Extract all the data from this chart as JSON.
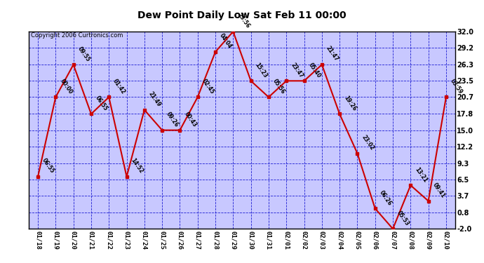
{
  "title": "Dew Point Daily Low Sat Feb 11 00:00",
  "copyright": "Copyright 2006 Curtronics.com",
  "outer_bg": "#ffffff",
  "plot_bg_color": "#c8c8ff",
  "line_color": "#cc0000",
  "marker_color": "#cc0000",
  "grid_color": "#0000cc",
  "x_labels": [
    "01/18",
    "01/19",
    "01/20",
    "01/21",
    "01/22",
    "01/23",
    "01/24",
    "01/25",
    "01/26",
    "01/27",
    "01/28",
    "01/29",
    "01/30",
    "01/31",
    "02/01",
    "02/02",
    "02/03",
    "02/04",
    "02/05",
    "02/06",
    "02/07",
    "02/08",
    "02/09",
    "02/10"
  ],
  "y_values": [
    7.0,
    20.7,
    26.3,
    17.8,
    20.7,
    7.0,
    18.5,
    15.0,
    15.0,
    20.7,
    28.5,
    32.0,
    23.5,
    20.7,
    23.5,
    23.5,
    26.3,
    17.8,
    11.0,
    1.5,
    -2.0,
    5.5,
    2.8,
    20.7
  ],
  "point_labels": [
    "06:55",
    "00:00",
    "09:55",
    "06:55",
    "01:42",
    "14:52",
    "21:49",
    "09:26",
    "00:43",
    "02:45",
    "04:04",
    "23:56",
    "15:23",
    "05:56",
    "23:47",
    "05:40",
    "21:47",
    "19:26",
    "23:02",
    "06:26",
    "05:53",
    "13:21",
    "09:41",
    "03:59"
  ],
  "ylim": [
    -2.0,
    32.0
  ],
  "yticks": [
    -2.0,
    0.8,
    3.7,
    6.5,
    9.3,
    12.2,
    15.0,
    17.8,
    20.7,
    23.5,
    26.3,
    29.2,
    32.0
  ]
}
